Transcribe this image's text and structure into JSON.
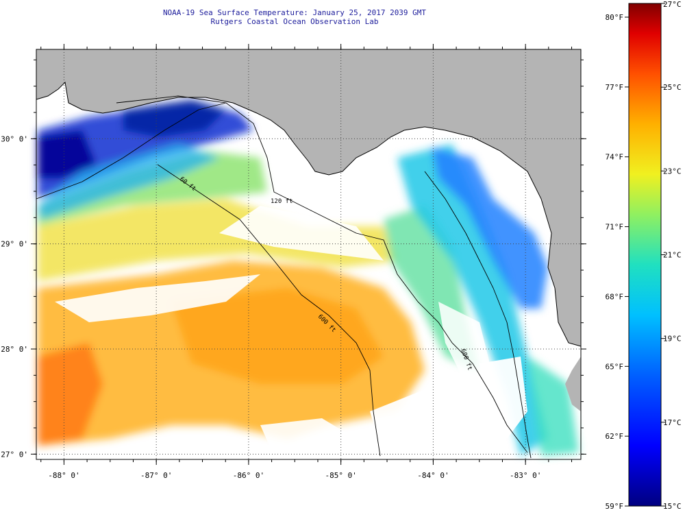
{
  "title": {
    "line1": "NOAA-19 Sea Surface Temperature:  January 25, 2017 2039 GMT",
    "line2": "Rutgers Coastal Ocean Observation Lab"
  },
  "map": {
    "lon_range": [
      -88.3,
      -82.4
    ],
    "lat_range": [
      26.95,
      30.85
    ],
    "lon_ticks": [
      {
        "value": -88,
        "label": "-88° 0'"
      },
      {
        "value": -87,
        "label": "-87° 0'"
      },
      {
        "value": -86,
        "label": "-86° 0'"
      },
      {
        "value": -85,
        "label": "-85° 0'"
      },
      {
        "value": -84,
        "label": "-84° 0'"
      },
      {
        "value": -83,
        "label": "-83° 0'"
      }
    ],
    "lat_ticks": [
      {
        "value": 30,
        "label": "30° 0'"
      },
      {
        "value": 29,
        "label": "29° 0'"
      },
      {
        "value": 28,
        "label": "28° 0'"
      },
      {
        "value": 27,
        "label": "27° 0'"
      }
    ],
    "contours": [
      {
        "label": "60 ft"
      },
      {
        "label": "120 ft"
      },
      {
        "label": "600 ft"
      },
      {
        "label": "600 ft"
      }
    ],
    "colors": {
      "land": "#b4b4b4",
      "no_data": "#ffffff",
      "grid": "#444444"
    }
  },
  "color_scale": {
    "fahrenheit": [
      "80°F",
      "77°F",
      "74°F",
      "71°F",
      "68°F",
      "65°F",
      "62°F",
      "59°F"
    ],
    "celsius": [
      "27°C",
      "25°C",
      "23°C",
      "21°C",
      "19°C",
      "17°C",
      "15°C"
    ],
    "range_c": [
      15,
      27
    ],
    "gradient": [
      "#000080",
      "#0000ff",
      "#0080ff",
      "#00c8e0",
      "#40e080",
      "#c0f040",
      "#ffff00",
      "#ffb000",
      "#ff6000",
      "#ff0000",
      "#800000"
    ]
  }
}
